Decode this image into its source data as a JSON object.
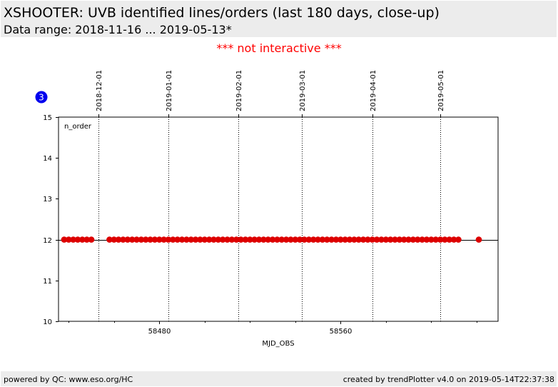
{
  "header": {
    "title": "XSHOOTER: UVB identified lines/orders (last 180 days, close-up)",
    "subtitle": "Data range: 2018-11-16 ... 2019-05-13*"
  },
  "notice": "*** not interactive ***",
  "badge": "3",
  "footer": {
    "left": "powered by QC: www.eso.org/HC",
    "right": "created by trendPlotter v4.0 on 2019-05-14T22:37:38"
  },
  "colors": {
    "marker": "#dd0000",
    "badge": "#0000ee",
    "notice": "#ff0000"
  },
  "chart_data": {
    "type": "scatter",
    "title": "",
    "xlabel": "MJD_OBS",
    "ylabel": "",
    "panel_label": "n_order",
    "xlim": [
      58435.5,
      58629.5
    ],
    "ylim": [
      10,
      15
    ],
    "xticks": [
      58480,
      58560
    ],
    "xtick_labels": [
      "58480",
      "58560"
    ],
    "yticks": [
      10,
      11,
      12,
      13,
      14,
      15
    ],
    "ytick_labels": [
      "10",
      "11",
      "12",
      "13",
      "14",
      "15"
    ],
    "reference_line": 12,
    "date_markers": [
      {
        "label": "2018-12-01",
        "mjd": 58453
      },
      {
        "label": "2019-01-01",
        "mjd": 58484
      },
      {
        "label": "2019-02-01",
        "mjd": 58515
      },
      {
        "label": "2019-03-01",
        "mjd": 58543
      },
      {
        "label": "2019-04-01",
        "mjd": 58574
      },
      {
        "label": "2019-05-01",
        "mjd": 58604
      }
    ],
    "grid": false,
    "series": [
      {
        "x": [
          58438,
          58440,
          58442,
          58444,
          58446,
          58448,
          58450,
          58458,
          58460,
          58462,
          58464,
          58466,
          58468,
          58470,
          58472,
          58474,
          58476,
          58478,
          58480,
          58482,
          58484,
          58486,
          58488,
          58490,
          58492,
          58494,
          58496,
          58498,
          58500,
          58502,
          58504,
          58506,
          58508,
          58510,
          58512,
          58514,
          58516,
          58518,
          58520,
          58522,
          58524,
          58526,
          58528,
          58530,
          58532,
          58534,
          58536,
          58538,
          58540,
          58542,
          58544,
          58546,
          58548,
          58550,
          58552,
          58554,
          58556,
          58558,
          58560,
          58562,
          58564,
          58566,
          58568,
          58570,
          58572,
          58574,
          58576,
          58578,
          58580,
          58582,
          58584,
          58586,
          58588,
          58590,
          58592,
          58594,
          58596,
          58598,
          58600,
          58602,
          58604,
          58606,
          58608,
          58610,
          58612,
          58621
        ],
        "y": [
          12,
          12,
          12,
          12,
          12,
          12,
          12,
          12,
          12,
          12,
          12,
          12,
          12,
          12,
          12,
          12,
          12,
          12,
          12,
          12,
          12,
          12,
          12,
          12,
          12,
          12,
          12,
          12,
          12,
          12,
          12,
          12,
          12,
          12,
          12,
          12,
          12,
          12,
          12,
          12,
          12,
          12,
          12,
          12,
          12,
          12,
          12,
          12,
          12,
          12,
          12,
          12,
          12,
          12,
          12,
          12,
          12,
          12,
          12,
          12,
          12,
          12,
          12,
          12,
          12,
          12,
          12,
          12,
          12,
          12,
          12,
          12,
          12,
          12,
          12,
          12,
          12,
          12,
          12,
          12,
          12,
          12,
          12,
          12,
          12,
          12
        ]
      }
    ]
  }
}
